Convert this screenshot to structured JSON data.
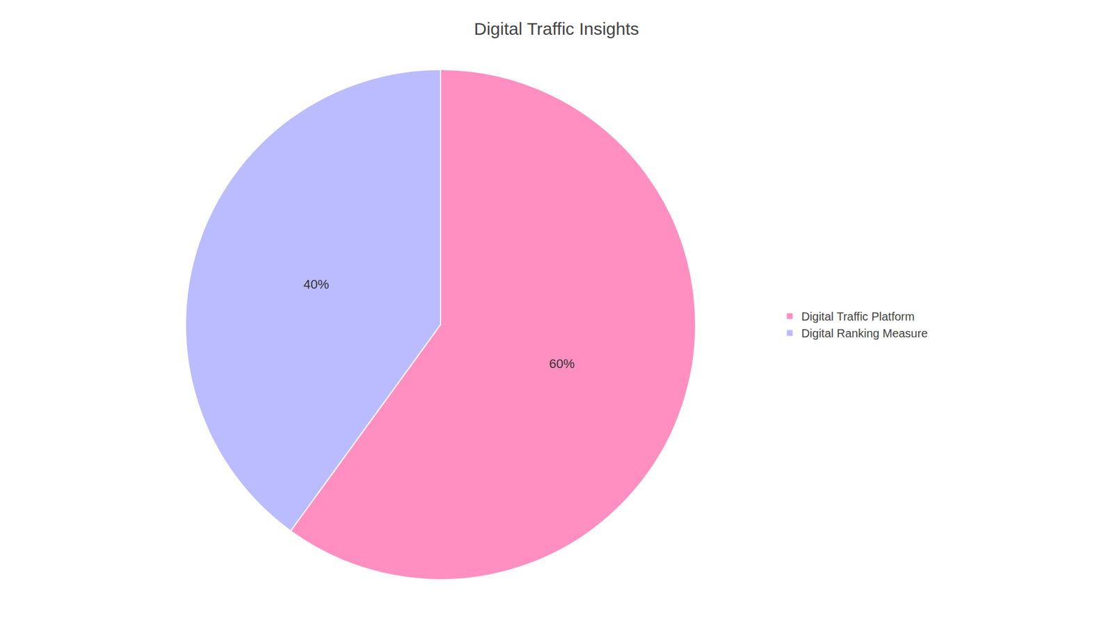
{
  "chart_data": {
    "type": "pie",
    "title": "Digital Traffic Insights",
    "categories": [
      "Digital Traffic Platform",
      "Digital Ranking Measure"
    ],
    "values": [
      60,
      40
    ],
    "value_labels": [
      "60%",
      "40%"
    ],
    "data_labels": true,
    "colors": [
      "#FF8FC0",
      "#BBBBFF"
    ],
    "legend": "right"
  }
}
